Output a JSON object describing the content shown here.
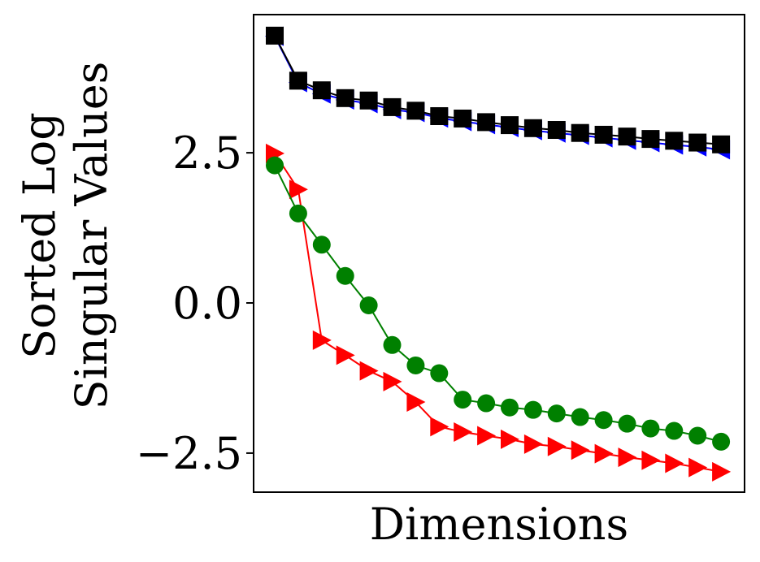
{
  "chart_data": {
    "type": "line",
    "title": "",
    "xlabel": "Dimensions",
    "ylabel_lines": [
      "Sorted Log",
      "Singular Values"
    ],
    "x_ticks_visible": false,
    "ylim": [
      -3.15,
      4.8
    ],
    "xlim": [
      0.1,
      21.0
    ],
    "y_ticks": [
      {
        "value": 2.5,
        "label": "2.5"
      },
      {
        "value": 0.0,
        "label": "0.0"
      },
      {
        "value": -2.5,
        "label": "−2.5"
      }
    ],
    "x": [
      1,
      2,
      3,
      4,
      5,
      6,
      7,
      8,
      9,
      10,
      11,
      12,
      13,
      14,
      15,
      16,
      17,
      18,
      19,
      20
    ],
    "series": [
      {
        "name": "blue-left-triangle",
        "color": "#0000ff",
        "marker": "triangle-left",
        "values": [
          4.44,
          3.67,
          3.48,
          3.38,
          3.32,
          3.22,
          3.17,
          3.08,
          3.02,
          2.97,
          2.92,
          2.87,
          2.83,
          2.79,
          2.75,
          2.71,
          2.67,
          2.63,
          2.6,
          2.55
        ]
      },
      {
        "name": "red-right-triangle",
        "color": "#ff0000",
        "marker": "triangle-right",
        "values": [
          2.49,
          1.89,
          -0.62,
          -0.87,
          -1.13,
          -1.31,
          -1.65,
          -2.06,
          -2.15,
          -2.21,
          -2.27,
          -2.35,
          -2.39,
          -2.45,
          -2.51,
          -2.57,
          -2.62,
          -2.67,
          -2.74,
          -2.81
        ]
      },
      {
        "name": "green-circle",
        "color": "#008000",
        "marker": "circle",
        "values": [
          2.29,
          1.49,
          0.97,
          0.45,
          -0.04,
          -0.7,
          -1.04,
          -1.17,
          -1.61,
          -1.67,
          -1.74,
          -1.78,
          -1.84,
          -1.9,
          -1.95,
          -2.01,
          -2.09,
          -2.13,
          -2.21,
          -2.31
        ]
      },
      {
        "name": "black-square",
        "color": "#000000",
        "marker": "square",
        "values": [
          4.45,
          3.7,
          3.54,
          3.41,
          3.37,
          3.26,
          3.2,
          3.11,
          3.07,
          3.01,
          2.96,
          2.91,
          2.88,
          2.83,
          2.8,
          2.77,
          2.73,
          2.7,
          2.67,
          2.64
        ]
      }
    ]
  }
}
